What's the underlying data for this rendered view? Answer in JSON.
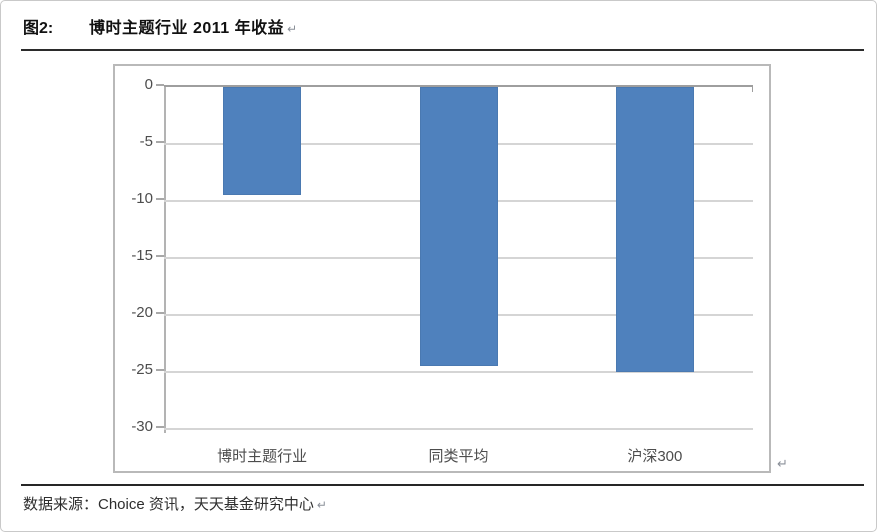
{
  "header": {
    "figure_label": "图2:",
    "title": "博时主题行业 2011 年收益",
    "return_mark": "↵"
  },
  "chart": {
    "return_mark": "↵"
  },
  "footer": {
    "source": "数据来源：Choice 资讯，天天基金研究中心",
    "return_mark": "↵"
  },
  "colors": {
    "bar": "#4F81BD",
    "gridline": "#D5D5D5",
    "axis": "#A8A8A8",
    "tick_label": "#4D4D4D"
  },
  "chart_data": {
    "type": "bar",
    "title": "博时主题行业 2011 年收益",
    "categories": [
      "博时主题行业",
      "同类平均",
      "沪深300"
    ],
    "values": [
      -9.5,
      -24.5,
      -25.0
    ],
    "xlabel": "",
    "ylabel": "",
    "ylim": [
      -30,
      0
    ],
    "yticks": [
      0,
      -5,
      -10,
      -15,
      -20,
      -25,
      -30
    ],
    "grid": true,
    "legend": false,
    "bar_color": "#4F81BD"
  }
}
